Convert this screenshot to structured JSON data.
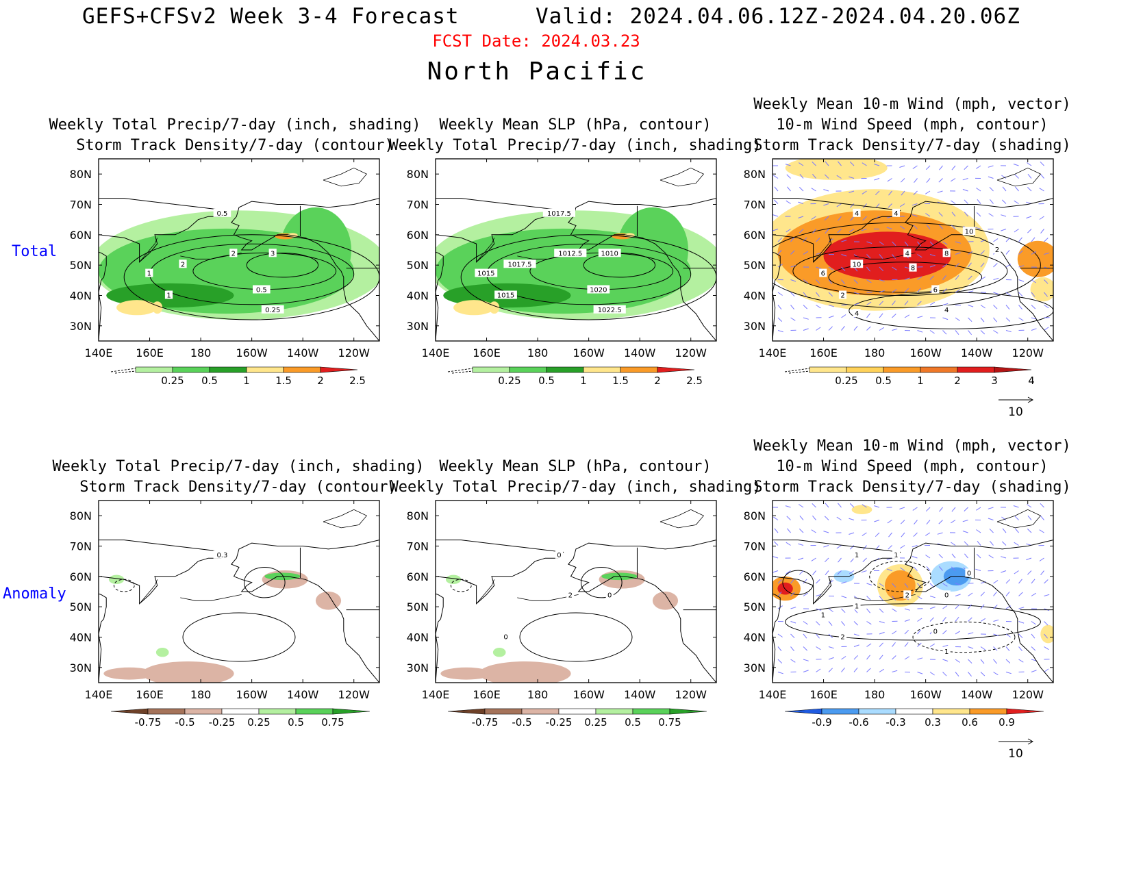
{
  "header": {
    "title_left": "GEFS+CFSv2 Week 3-4 Forecast",
    "title_right": "Valid: 2024.04.06.12Z-2024.04.20.06Z",
    "fcst_date": "FCST Date: 2024.03.23",
    "region": "North Pacific"
  },
  "rows": {
    "total": "Total",
    "anomaly": "Anomaly"
  },
  "axis": {
    "lat": [
      "80N",
      "70N",
      "60N",
      "50N",
      "40N",
      "30N"
    ],
    "lon": [
      "140E",
      "160E",
      "180",
      "160W",
      "140W",
      "120W"
    ]
  },
  "panels": {
    "p1": {
      "l1": "",
      "l2": "Weekly Total Precip/7-day (inch, shading)",
      "l3": "Storm Track Density/7-day (contour)"
    },
    "p2": {
      "l1": "",
      "l2": "Weekly Mean SLP (hPa, contour)",
      "l3": "Weekly Total Precip/7-day (inch, shading)"
    },
    "p3": {
      "l1": "Weekly Mean 10-m Wind (mph, vector)",
      "l2": "10-m Wind Speed (mph, contour)",
      "l3": "Storm Track Density/7-day (shading)"
    }
  },
  "colorbars": {
    "precip_total": [
      "0.25",
      "0.5",
      "1",
      "1.5",
      "2",
      "2.5"
    ],
    "storm_total": [
      "0.25",
      "0.5",
      "1",
      "2",
      "3",
      "4"
    ],
    "precip_anom": [
      "-0.75",
      "-0.5",
      "-0.25",
      "0.25",
      "0.5",
      "0.75"
    ],
    "storm_anom": [
      "-0.9",
      "-0.6",
      "-0.3",
      "0.3",
      "0.6",
      "0.9"
    ]
  },
  "vector_ref": "10",
  "contour_labels": {
    "storm_total": [
      "0.5",
      "1",
      "2",
      "3",
      "1",
      "2",
      "0.5",
      "0.25"
    ],
    "slp_total": [
      "1017.5",
      "1015",
      "1012.5",
      "1010",
      "1015",
      "1017.5",
      "1020",
      "1022.5"
    ],
    "wind_total": [
      "4",
      "2",
      "4",
      "8",
      "6",
      "10",
      "6",
      "4",
      "4",
      "10",
      "8",
      "2",
      "4"
    ],
    "storm_anom": [
      "0.3"
    ],
    "slp_anom": [
      "0",
      "0",
      "2",
      "0"
    ],
    "wind_anom": [
      "1",
      "2",
      "2",
      "0",
      "1",
      "1",
      "0",
      "1",
      "1",
      "0"
    ]
  },
  "colors": {
    "title_red": "#ff0000",
    "row_label_blue": "#0000ff",
    "green_light": "#b4f0a0",
    "green_mid": "#5ad25a",
    "green_dark": "#28a028",
    "yellow": "#ffe68c",
    "orange": "#fa9b28",
    "red": "#e11e1e",
    "brown_light": "#dcb4a5",
    "brown_mid": "#a5735a",
    "brown_dark": "#6e4128",
    "blue_light": "#aadcff",
    "blue_mid": "#4b9bf0",
    "blue_dark": "#1e5ae1",
    "vector": "#7878ff"
  }
}
